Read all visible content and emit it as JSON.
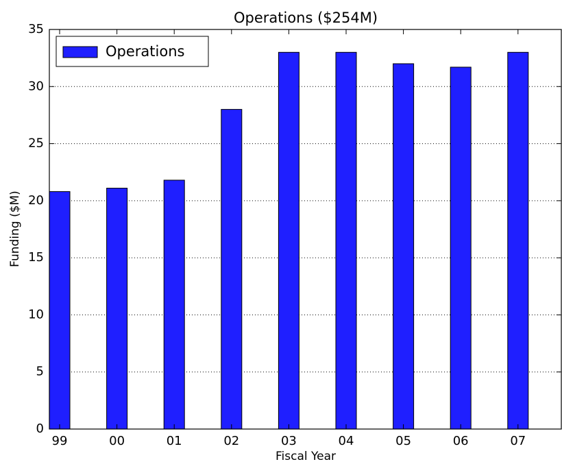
{
  "chart_data": {
    "type": "bar",
    "title": "Operations ($254M)",
    "xlabel": "Fiscal Year",
    "ylabel": "Funding ($M)",
    "categories": [
      "99",
      "00",
      "01",
      "02",
      "03",
      "04",
      "05",
      "06",
      "07"
    ],
    "series": [
      {
        "name": "Operations",
        "color": "#1f1fff",
        "values": [
          20.8,
          21.1,
          21.8,
          28,
          33,
          33,
          32,
          31.7,
          33
        ]
      }
    ],
    "ylim": [
      0,
      35
    ],
    "yticks": [
      0,
      5,
      10,
      15,
      20,
      25,
      30,
      35
    ],
    "grid": true,
    "legend": "upper left"
  }
}
